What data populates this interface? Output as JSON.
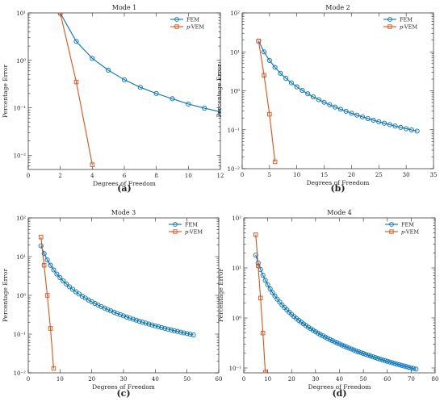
{
  "colors": {
    "fem": "#0072BD",
    "pvem": "#D95319"
  },
  "chart_data": [
    {
      "type": "line",
      "title": "Mode 1",
      "panel_label": "(a)",
      "xlabel": "Degrees of Freedom",
      "ylabel": "Percentage Error",
      "xlim": [
        0,
        12
      ],
      "ylim": [
        0.005,
        10
      ],
      "yscale": "log",
      "xticks": [
        0,
        2,
        4,
        6,
        8,
        10,
        12
      ],
      "yticks": [
        0.01,
        0.1,
        1,
        10
      ],
      "ytick_labels": [
        "10⁻²",
        "10⁻¹",
        "10⁰",
        "10¹"
      ],
      "legend_position": "top-right",
      "grid": false,
      "series": [
        {
          "name": "FEM",
          "marker": "circle",
          "x": [
            2,
            3,
            4,
            5,
            6,
            7,
            8,
            9,
            10,
            11,
            12
          ],
          "y": [
            9.9,
            2.5,
            1.1,
            0.62,
            0.39,
            0.27,
            0.2,
            0.155,
            0.12,
            0.098,
            0.082
          ]
        },
        {
          "name": "p-VEM",
          "marker": "square",
          "x": [
            2,
            3,
            4
          ],
          "y": [
            9.9,
            0.35,
            0.0063
          ]
        }
      ]
    },
    {
      "type": "line",
      "title": "Mode 2",
      "panel_label": "(b)",
      "xlabel": "Degrees of Freedom",
      "ylabel": "Percentage Error",
      "xlim": [
        0,
        35
      ],
      "ylim": [
        0.01,
        100
      ],
      "yscale": "log",
      "xticks": [
        0,
        5,
        10,
        15,
        20,
        25,
        30,
        35
      ],
      "yticks": [
        0.01,
        0.1,
        1,
        10,
        100
      ],
      "ytick_labels": [
        "10⁻²",
        "10⁻¹",
        "10⁰",
        "10¹",
        "10²"
      ],
      "legend_position": "top-right",
      "grid": false,
      "series": [
        {
          "name": "FEM",
          "marker": "circle",
          "x_start": 3,
          "x_end": 32,
          "y_start": 19,
          "y_end": 0.092,
          "decay": "power"
        },
        {
          "name": "p-VEM",
          "marker": "square",
          "x": [
            3,
            4,
            5,
            6
          ],
          "y": [
            19,
            2.5,
            0.25,
            0.015
          ]
        }
      ]
    },
    {
      "type": "line",
      "title": "Mode 3",
      "panel_label": "(c)",
      "xlabel": "Degrees of Freedom",
      "ylabel": "Percentage Error",
      "xlim": [
        0,
        60
      ],
      "ylim": [
        0.01,
        100
      ],
      "yscale": "log",
      "xticks": [
        0,
        10,
        20,
        30,
        40,
        50,
        60
      ],
      "yticks": [
        0.01,
        0.1,
        1,
        10,
        100
      ],
      "ytick_labels": [
        "10⁻²",
        "10⁻¹",
        "10⁰",
        "10¹",
        "10²"
      ],
      "legend_position": "top-right",
      "grid": false,
      "series": [
        {
          "name": "FEM",
          "marker": "circle",
          "x_start": 4,
          "x_end": 52,
          "y_start": 19,
          "y_end": 0.095,
          "decay": "power"
        },
        {
          "name": "p-VEM",
          "marker": "square",
          "x": [
            4,
            5,
            6,
            7,
            8
          ],
          "y": [
            32,
            6,
            1.0,
            0.14,
            0.013
          ]
        }
      ]
    },
    {
      "type": "line",
      "title": "Mode 4",
      "panel_label": "(d)",
      "xlabel": "Degrees of Freedom",
      "ylabel": "Percentage Error",
      "xlim": [
        0,
        80
      ],
      "ylim": [
        0.08,
        100
      ],
      "yscale": "log",
      "xticks": [
        0,
        10,
        20,
        30,
        40,
        50,
        60,
        70,
        80
      ],
      "yticks": [
        0.1,
        1,
        10,
        100
      ],
      "ytick_labels": [
        "10⁻¹",
        "10⁰",
        "10¹",
        "10²"
      ],
      "legend_position": "top-right",
      "grid": false,
      "series": [
        {
          "name": "FEM",
          "marker": "circle",
          "x_start": 5,
          "x_end": 72,
          "y_start": 18,
          "y_end": 0.095,
          "decay": "power"
        },
        {
          "name": "p-VEM",
          "marker": "square",
          "x": [
            5,
            6,
            7,
            8,
            9
          ],
          "y": [
            46,
            11,
            2.5,
            0.5,
            0.082
          ]
        }
      ]
    }
  ]
}
